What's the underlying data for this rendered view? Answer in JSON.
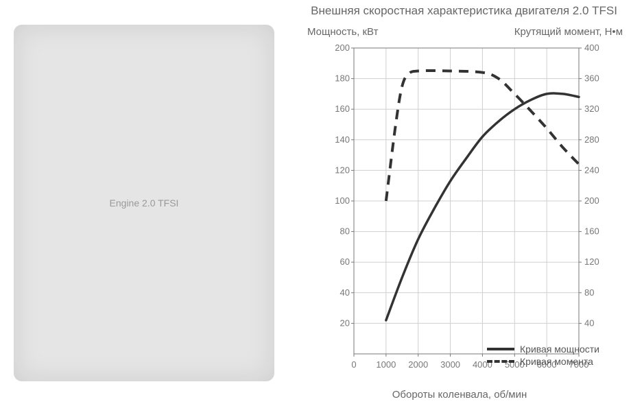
{
  "left_image_alt": "Engine 2.0 TFSI",
  "chart": {
    "type": "line",
    "title": "Внешняя скоростная характеристика двигателя 2.0 TFSI",
    "y_left_label": "Мощность, кВт",
    "y_right_label": "Крутящий момент, Н•м",
    "x_label": "Обороты коленвала, об/мин",
    "x": {
      "min": 0,
      "max": 7000,
      "tick_step": 1000,
      "ticks": [
        0,
        1000,
        2000,
        3000,
        4000,
        5000,
        6000,
        7000
      ]
    },
    "y_left": {
      "min": 0,
      "max": 200,
      "tick_step": 20,
      "ticks": [
        20,
        40,
        60,
        80,
        100,
        120,
        140,
        160,
        180,
        200
      ]
    },
    "y_right": {
      "min": 0,
      "max": 400,
      "tick_step": 40,
      "ticks": [
        40,
        80,
        120,
        160,
        200,
        240,
        280,
        320,
        360,
        400
      ]
    },
    "grid_color": "#cfcfcf",
    "axis_color": "#777",
    "background_color": "#ffffff",
    "font_color": "#666",
    "line_color": "#333333",
    "line_width_power": 3.5,
    "line_width_torque": 4,
    "dash_pattern": "14 10",
    "power_series": {
      "name": "Кривая мощности",
      "rpm": [
        1000,
        1500,
        2000,
        2500,
        3000,
        3500,
        4000,
        4500,
        5000,
        5500,
        6000,
        6500,
        7000
      ],
      "value": [
        22,
        50,
        75,
        95,
        113,
        128,
        142,
        152,
        160,
        166,
        170,
        170,
        168
      ]
    },
    "torque_series": {
      "name": "Кривая момента",
      "rpm": [
        1000,
        1300,
        1500,
        1700,
        2000,
        3000,
        4000,
        4500,
        5000,
        5500,
        6000,
        6500,
        7000
      ],
      "value": [
        200,
        300,
        350,
        366,
        370,
        370,
        368,
        360,
        340,
        318,
        295,
        270,
        248
      ]
    },
    "legend": {
      "power": "Кривая мощности",
      "torque": "Кривая момента"
    }
  }
}
